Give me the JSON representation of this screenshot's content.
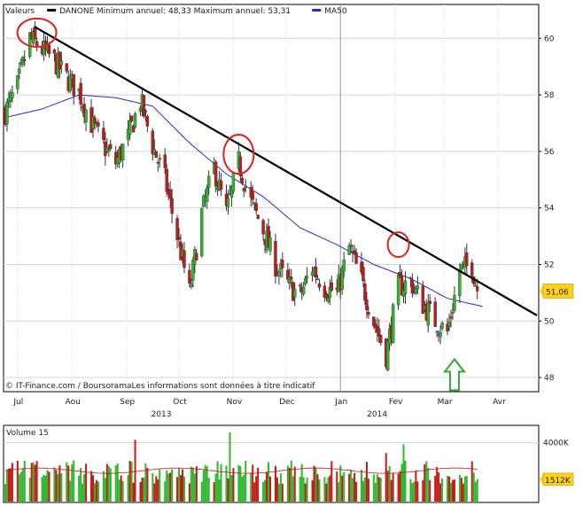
{
  "legend": {
    "items": [
      {
        "label": "Valeurs",
        "swatch": "none",
        "swatch_color": ""
      },
      {
        "label": "DANONE",
        "swatch": "line",
        "swatch_color": "#000000"
      },
      {
        "label": "Minimum annuel: 48,33 Maximum annuel: 53,31",
        "swatch": "none",
        "swatch_color": ""
      },
      {
        "label": "MA50",
        "swatch": "line",
        "swatch_color": "#2a2ad0"
      }
    ]
  },
  "source_label": "© IT-Finance.com / BoursoramaLes informations sont données à titre indicatif",
  "volume_title": "Volume 15",
  "colors": {
    "up": "#2fb82f",
    "down": "#c81818",
    "ma": "#2a2ad0",
    "trend": "#000000",
    "highlight_circle": "#e02020",
    "arrow": "#35a535",
    "price_label_bg": "#ffd21a",
    "grid": "#d6d6d6",
    "border": "#000000"
  },
  "annotations": {
    "trendline": {
      "start": {
        "x": "2013-07-11",
        "y": 60.4
      },
      "end": {
        "x": "2014-04-23",
        "y": 50.2
      }
    },
    "circles": [
      {
        "x": "2013-07-12",
        "y": 60.2
      },
      {
        "x": "2013-11-04",
        "y": 55.9
      },
      {
        "x": "2014-02-03",
        "y": 52.7
      }
    ],
    "arrow": {
      "x": "2014-03-07",
      "y": 48.9,
      "direction": "up"
    }
  },
  "chart_data": [
    {
      "type": "candlestick",
      "title": "",
      "series_name": "DANONE",
      "ylim": [
        47.5,
        61.2
      ],
      "y_ticks": [
        48,
        50,
        52,
        54,
        56,
        58,
        60
      ],
      "y_tick_labels": [
        "48",
        "50",
        "52",
        "54",
        "56",
        "58",
        "60"
      ],
      "x_months": [
        {
          "label": "Jul",
          "date": "2013-07-01"
        },
        {
          "label": "Aou",
          "date": "2013-08-01"
        },
        {
          "label": "Sep",
          "date": "2013-09-01"
        },
        {
          "label": "Oct",
          "date": "2013-10-01"
        },
        {
          "label": "Nov",
          "date": "2013-11-01"
        },
        {
          "label": "Dec",
          "date": "2013-12-01"
        },
        {
          "label": "Jan",
          "date": "2014-01-01"
        },
        {
          "label": "Fev",
          "date": "2014-02-01"
        },
        {
          "label": "Mar",
          "date": "2014-03-01"
        },
        {
          "label": "Avr",
          "date": "2014-04-01"
        }
      ],
      "x_years": [
        {
          "label": "2013",
          "date": "2013-10-01"
        },
        {
          "label": "2014",
          "date": "2014-02-01"
        }
      ],
      "year_separator": "2014-01-01",
      "last_price_label": "51,06",
      "last_price": 51.06,
      "grid": true,
      "legend": "top-left",
      "price_anchors": [
        {
          "x": "2013-06-24",
          "y": 57.4
        },
        {
          "x": "2013-07-01",
          "y": 58.3
        },
        {
          "x": "2013-07-08",
          "y": 60.0
        },
        {
          "x": "2013-07-15",
          "y": 59.6
        },
        {
          "x": "2013-07-22",
          "y": 59.2
        },
        {
          "x": "2013-07-29",
          "y": 58.6
        },
        {
          "x": "2013-08-05",
          "y": 58.1
        },
        {
          "x": "2013-08-12",
          "y": 57.0
        },
        {
          "x": "2013-08-19",
          "y": 56.2
        },
        {
          "x": "2013-08-26",
          "y": 55.6
        },
        {
          "x": "2013-09-02",
          "y": 56.5
        },
        {
          "x": "2013-09-09",
          "y": 57.8
        },
        {
          "x": "2013-09-16",
          "y": 56.2
        },
        {
          "x": "2013-09-23",
          "y": 55.0
        },
        {
          "x": "2013-09-30",
          "y": 53.0
        },
        {
          "x": "2013-10-07",
          "y": 51.0
        },
        {
          "x": "2013-10-14",
          "y": 53.8
        },
        {
          "x": "2013-10-21",
          "y": 55.4
        },
        {
          "x": "2013-10-28",
          "y": 53.8
        },
        {
          "x": "2013-11-04",
          "y": 55.6
        },
        {
          "x": "2013-11-11",
          "y": 54.2
        },
        {
          "x": "2013-11-18",
          "y": 53.2
        },
        {
          "x": "2013-11-25",
          "y": 52.0
        },
        {
          "x": "2013-12-02",
          "y": 51.3
        },
        {
          "x": "2013-12-09",
          "y": 50.9
        },
        {
          "x": "2013-12-16",
          "y": 51.9
        },
        {
          "x": "2013-12-23",
          "y": 51.2
        },
        {
          "x": "2013-12-30",
          "y": 51.0
        },
        {
          "x": "2014-01-06",
          "y": 52.6
        },
        {
          "x": "2014-01-13",
          "y": 51.4
        },
        {
          "x": "2014-01-20",
          "y": 50.0
        },
        {
          "x": "2014-01-27",
          "y": 48.8
        },
        {
          "x": "2014-02-03",
          "y": 51.2
        },
        {
          "x": "2014-02-10",
          "y": 51.4
        },
        {
          "x": "2014-02-17",
          "y": 50.6
        },
        {
          "x": "2014-02-24",
          "y": 50.0
        },
        {
          "x": "2014-03-03",
          "y": 49.6
        },
        {
          "x": "2014-03-10",
          "y": 51.8
        },
        {
          "x": "2014-03-17",
          "y": 52.0
        },
        {
          "x": "2014-03-20",
          "y": 51.06
        }
      ],
      "ma50_anchors": [
        {
          "x": "2013-06-24",
          "y": 57.2
        },
        {
          "x": "2013-07-15",
          "y": 57.5
        },
        {
          "x": "2013-08-05",
          "y": 58.0
        },
        {
          "x": "2013-08-26",
          "y": 57.9
        },
        {
          "x": "2013-09-16",
          "y": 57.6
        },
        {
          "x": "2013-10-07",
          "y": 56.3
        },
        {
          "x": "2013-10-28",
          "y": 55.2
        },
        {
          "x": "2013-11-18",
          "y": 54.4
        },
        {
          "x": "2013-12-09",
          "y": 53.3
        },
        {
          "x": "2013-12-30",
          "y": 52.7
        },
        {
          "x": "2014-01-20",
          "y": 52.0
        },
        {
          "x": "2014-02-10",
          "y": 51.5
        },
        {
          "x": "2014-03-03",
          "y": 50.8
        },
        {
          "x": "2014-03-24",
          "y": 50.5
        }
      ]
    },
    {
      "type": "bar",
      "title": "Volume 15",
      "ylim": [
        0,
        5000000
      ],
      "y_ticks": [
        4000000
      ],
      "y_tick_labels": [
        "4000K"
      ],
      "last_volume_label": "1512K",
      "last_volume": 1512000,
      "spikes": [
        {
          "x": "2013-09-06",
          "y": 4200000
        },
        {
          "x": "2013-10-30",
          "y": 4700000
        },
        {
          "x": "2014-01-27",
          "y": 3300000
        },
        {
          "x": "2014-02-06",
          "y": 3900000
        }
      ],
      "volume_ma_level": 2100000
    }
  ]
}
